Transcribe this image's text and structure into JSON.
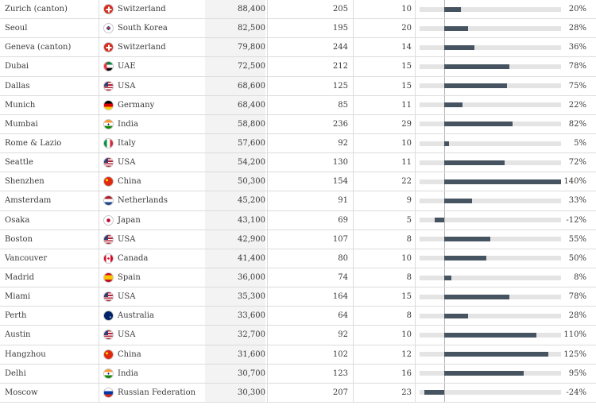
{
  "rows": [
    {
      "city": "Zurich (canton)",
      "country": "Switzerland",
      "flag": "switzerland-flag-icon",
      "value": "88,400",
      "count": "205",
      "rank": "10",
      "pct": "20%",
      "pct_value": 20
    },
    {
      "city": "Seoul",
      "country": "South Korea",
      "flag": "south-korea-flag-icon",
      "value": "82,500",
      "count": "195",
      "rank": "20",
      "pct": "28%",
      "pct_value": 28
    },
    {
      "city": "Geneva (canton)",
      "country": "Switzerland",
      "flag": "switzerland-flag-icon",
      "value": "79,800",
      "count": "244",
      "rank": "14",
      "pct": "36%",
      "pct_value": 36
    },
    {
      "city": "Dubai",
      "country": "UAE",
      "flag": "uae-flag-icon",
      "value": "72,500",
      "count": "212",
      "rank": "15",
      "pct": "78%",
      "pct_value": 78
    },
    {
      "city": "Dallas",
      "country": "USA",
      "flag": "usa-flag-icon",
      "value": "68,600",
      "count": "125",
      "rank": "15",
      "pct": "75%",
      "pct_value": 75
    },
    {
      "city": "Munich",
      "country": "Germany",
      "flag": "germany-flag-icon",
      "value": "68,400",
      "count": "85",
      "rank": "11",
      "pct": "22%",
      "pct_value": 22
    },
    {
      "city": "Mumbai",
      "country": "India",
      "flag": "india-flag-icon",
      "value": "58,800",
      "count": "236",
      "rank": "29",
      "pct": "82%",
      "pct_value": 82
    },
    {
      "city": "Rome & Lazio",
      "country": "Italy",
      "flag": "italy-flag-icon",
      "value": "57,600",
      "count": "92",
      "rank": "10",
      "pct": "5%",
      "pct_value": 5
    },
    {
      "city": "Seattle",
      "country": "USA",
      "flag": "usa-flag-icon",
      "value": "54,200",
      "count": "130",
      "rank": "11",
      "pct": "72%",
      "pct_value": 72
    },
    {
      "city": "Shenzhen",
      "country": "China",
      "flag": "china-flag-icon",
      "value": "50,300",
      "count": "154",
      "rank": "22",
      "pct": "140%",
      "pct_value": 140
    },
    {
      "city": "Amsterdam",
      "country": "Netherlands",
      "flag": "netherlands-flag-icon",
      "value": "45,200",
      "count": "91",
      "rank": "9",
      "pct": "33%",
      "pct_value": 33
    },
    {
      "city": "Osaka",
      "country": "Japan",
      "flag": "japan-flag-icon",
      "value": "43,100",
      "count": "69",
      "rank": "5",
      "pct": "-12%",
      "pct_value": -12
    },
    {
      "city": "Boston",
      "country": "USA",
      "flag": "usa-flag-icon",
      "value": "42,900",
      "count": "107",
      "rank": "8",
      "pct": "55%",
      "pct_value": 55
    },
    {
      "city": "Vancouver",
      "country": "Canada",
      "flag": "canada-flag-icon",
      "value": "41,400",
      "count": "80",
      "rank": "10",
      "pct": "50%",
      "pct_value": 50
    },
    {
      "city": "Madrid",
      "country": "Spain",
      "flag": "spain-flag-icon",
      "value": "36,000",
      "count": "74",
      "rank": "8",
      "pct": "8%",
      "pct_value": 8
    },
    {
      "city": "Miami",
      "country": "USA",
      "flag": "usa-flag-icon",
      "value": "35,300",
      "count": "164",
      "rank": "15",
      "pct": "78%",
      "pct_value": 78
    },
    {
      "city": "Perth",
      "country": "Australia",
      "flag": "australia-flag-icon",
      "value": "33,600",
      "count": "64",
      "rank": "8",
      "pct": "28%",
      "pct_value": 28
    },
    {
      "city": "Austin",
      "country": "USA",
      "flag": "usa-flag-icon",
      "value": "32,700",
      "count": "92",
      "rank": "10",
      "pct": "110%",
      "pct_value": 110
    },
    {
      "city": "Hangzhou",
      "country": "China",
      "flag": "china-flag-icon",
      "value": "31,600",
      "count": "102",
      "rank": "12",
      "pct": "125%",
      "pct_value": 125
    },
    {
      "city": "Delhi",
      "country": "India",
      "flag": "india-flag-icon",
      "value": "30,700",
      "count": "123",
      "rank": "16",
      "pct": "95%",
      "pct_value": 95
    },
    {
      "city": "Moscow",
      "country": "Russian Federation",
      "flag": "russia-flag-icon",
      "value": "30,300",
      "count": "207",
      "rank": "23",
      "pct": "-24%",
      "pct_value": -24
    }
  ],
  "bar_scale": {
    "min": -30,
    "max": 140
  },
  "colors": {
    "bar_fill": "#465360",
    "bar_track": "#e4e4e4",
    "value_column_bg": "#f3f3f3"
  }
}
